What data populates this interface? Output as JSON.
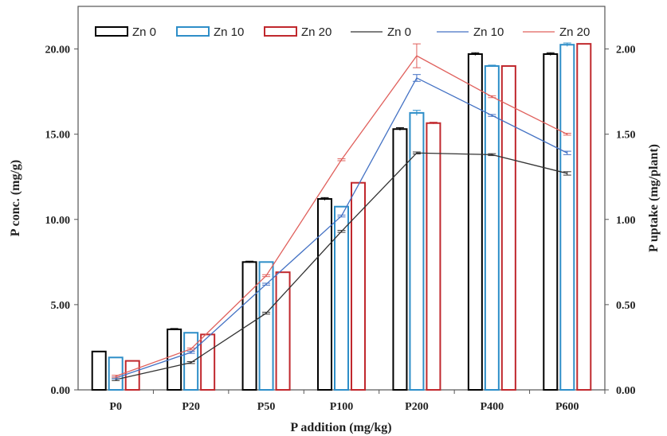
{
  "chart_data": {
    "type": "bar",
    "categories": [
      "P0",
      "P20",
      "P50",
      "P100",
      "P200",
      "P400",
      "P600"
    ],
    "xlabel": "P addition (mg/kg)",
    "ylabel": "P conc. (mg/g)",
    "y2label": "P uptake (mg/plant)",
    "ylim": [
      0,
      22.5
    ],
    "y2lim": [
      0,
      2.25
    ],
    "yticks": [
      "0.00",
      "5.00",
      "10.00",
      "15.00",
      "20.00"
    ],
    "y2ticks": [
      "0.00",
      "0.50",
      "1.00",
      "1.50",
      "2.00"
    ],
    "bar_series": [
      {
        "name": "Zn 0",
        "color": "#000000",
        "values": [
          2.25,
          3.55,
          7.5,
          11.2,
          15.3,
          19.7,
          19.7
        ],
        "errors": [
          0,
          0.05,
          0.05,
          0.08,
          0.08,
          0.08,
          0.08
        ]
      },
      {
        "name": "Zn 10",
        "color": "#2e8ec8",
        "values": [
          1.9,
          3.35,
          7.5,
          10.75,
          16.25,
          19.0,
          20.25
        ],
        "errors": [
          0,
          0,
          0,
          0,
          0.15,
          0.05,
          0.1
        ]
      },
      {
        "name": "Zn 20",
        "color": "#c0282d",
        "values": [
          1.7,
          3.25,
          6.9,
          12.15,
          15.65,
          19.0,
          20.3
        ],
        "errors": [
          0,
          0,
          0,
          0,
          0.05,
          0,
          0
        ]
      }
    ],
    "line_series": [
      {
        "name": "Zn 0",
        "color": "#333333",
        "values": [
          0.06,
          0.16,
          0.45,
          0.93,
          1.39,
          1.38,
          1.27
        ],
        "errors": [
          0,
          0,
          0,
          0,
          0,
          0,
          0.01
        ]
      },
      {
        "name": "Zn 10",
        "color": "#4472c4",
        "values": [
          0.07,
          0.22,
          0.62,
          1.02,
          1.83,
          1.61,
          1.39
        ],
        "errors": [
          0,
          0,
          0,
          0,
          0.02,
          0,
          0.01
        ]
      },
      {
        "name": "Zn 20",
        "color": "#e0605c",
        "values": [
          0.08,
          0.24,
          0.67,
          1.35,
          1.96,
          1.72,
          1.5
        ],
        "errors": [
          0,
          0,
          0,
          0,
          0.07,
          0,
          0
        ]
      }
    ],
    "legend": {
      "position": "top",
      "entries": [
        "Zn 0",
        "Zn 10",
        "Zn 20",
        "Zn 0",
        "Zn 10",
        "Zn 20"
      ]
    },
    "grid": false
  }
}
